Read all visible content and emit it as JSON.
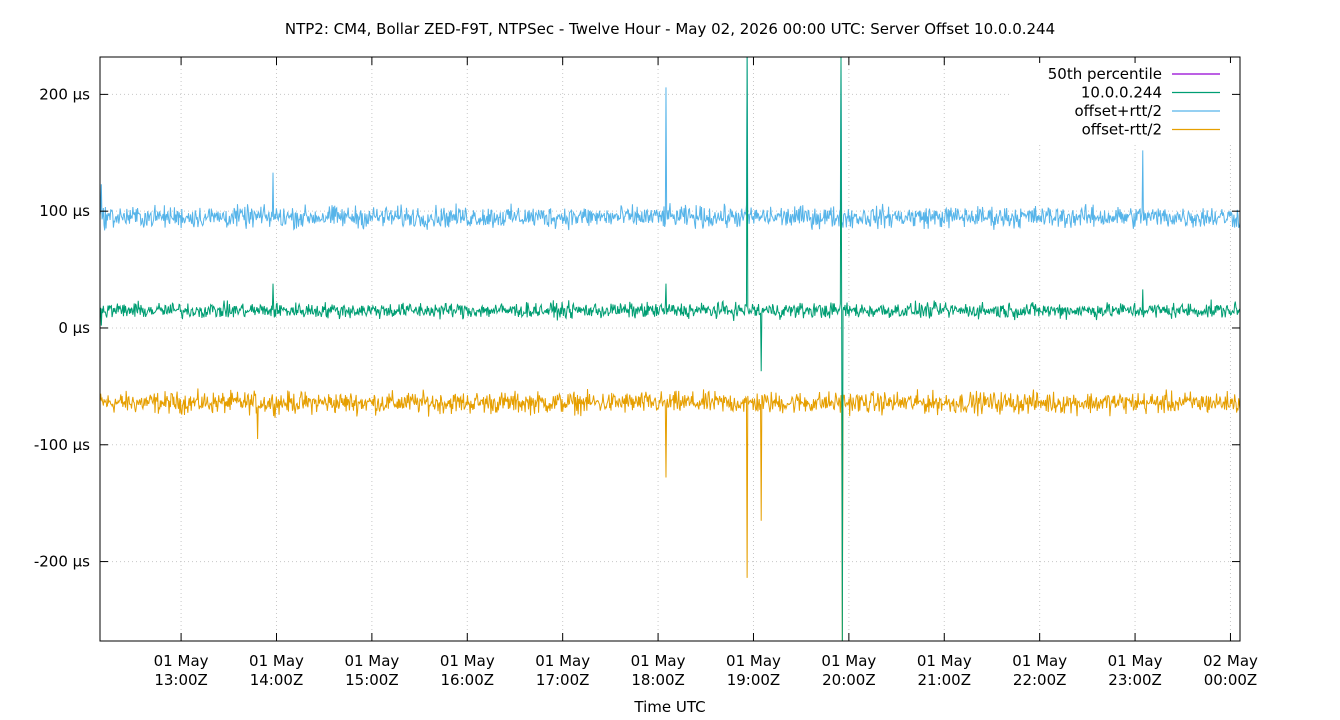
{
  "chart_data": {
    "type": "line",
    "title": "NTP2: CM4, Bollar ZED-F9T, NTPSec - Twelve Hour - May 02, 2026 00:00 UTC: Server Offset 10.0.0.244",
    "xlabel": "Time UTC",
    "ylabel": "",
    "xlim": [
      "2026-05-01T12:09Z",
      "2026-05-02T00:06Z"
    ],
    "ylim": [
      -268,
      232
    ],
    "grid": true,
    "legend_position": "top-right",
    "x_ticks": [
      {
        "time": "2026-05-01T13:00Z",
        "line1": "01 May",
        "line2": "13:00Z"
      },
      {
        "time": "2026-05-01T14:00Z",
        "line1": "01 May",
        "line2": "14:00Z"
      },
      {
        "time": "2026-05-01T15:00Z",
        "line1": "01 May",
        "line2": "15:00Z"
      },
      {
        "time": "2026-05-01T16:00Z",
        "line1": "01 May",
        "line2": "16:00Z"
      },
      {
        "time": "2026-05-01T17:00Z",
        "line1": "01 May",
        "line2": "17:00Z"
      },
      {
        "time": "2026-05-01T18:00Z",
        "line1": "01 May",
        "line2": "18:00Z"
      },
      {
        "time": "2026-05-01T19:00Z",
        "line1": "01 May",
        "line2": "19:00Z"
      },
      {
        "time": "2026-05-01T20:00Z",
        "line1": "01 May",
        "line2": "20:00Z"
      },
      {
        "time": "2026-05-01T21:00Z",
        "line1": "01 May",
        "line2": "21:00Z"
      },
      {
        "time": "2026-05-01T22:00Z",
        "line1": "01 May",
        "line2": "22:00Z"
      },
      {
        "time": "2026-05-01T23:00Z",
        "line1": "01 May",
        "line2": "23:00Z"
      },
      {
        "time": "2026-05-02T00:00Z",
        "line1": "02 May",
        "line2": "00:00Z"
      }
    ],
    "y_ticks": [
      {
        "value": 200,
        "label": "200 µs"
      },
      {
        "value": 100,
        "label": "100 µs"
      },
      {
        "value": 0,
        "label": "0 µs"
      },
      {
        "value": -100,
        "label": "-100 µs"
      },
      {
        "value": -200,
        "label": "-200 µs"
      }
    ],
    "series": [
      {
        "name": "50th percentile",
        "color": "#9400d3",
        "baseline": 15,
        "noise": 0,
        "spikes": []
      },
      {
        "name": "10.0.0.244",
        "color": "#009e73",
        "baseline": 15,
        "noise": 5,
        "spikes": [
          {
            "time": "2026-05-01T12:10Z",
            "value": 2
          },
          {
            "time": "2026-05-01T13:58Z",
            "value": 38
          },
          {
            "time": "2026-05-01T18:05Z",
            "value": 38
          },
          {
            "time": "2026-05-01T18:56Z",
            "value": 232
          },
          {
            "time": "2026-05-01T19:05Z",
            "value": -37
          },
          {
            "time": "2026-05-01T19:55Z",
            "value": 232
          },
          {
            "time": "2026-05-01T19:56Z",
            "value": -268
          },
          {
            "time": "2026-05-01T23:05Z",
            "value": 33
          }
        ]
      },
      {
        "name": "offset+rtt/2",
        "color": "#56b4e9",
        "baseline": 95,
        "noise": 7,
        "spikes": [
          {
            "time": "2026-05-01T12:10Z",
            "value": 123
          },
          {
            "time": "2026-05-01T13:58Z",
            "value": 133
          },
          {
            "time": "2026-05-01T18:05Z",
            "value": 206
          },
          {
            "time": "2026-05-01T18:56Z",
            "value": 232
          },
          {
            "time": "2026-05-01T19:55Z",
            "value": 232
          },
          {
            "time": "2026-05-01T23:05Z",
            "value": 152
          }
        ]
      },
      {
        "name": "offset-rtt/2",
        "color": "#e69f00",
        "baseline": -64,
        "noise": 7,
        "spikes": [
          {
            "time": "2026-05-01T13:48Z",
            "value": -95
          },
          {
            "time": "2026-05-01T18:05Z",
            "value": -128
          },
          {
            "time": "2026-05-01T18:56Z",
            "value": -214
          },
          {
            "time": "2026-05-01T19:05Z",
            "value": -165
          },
          {
            "time": "2026-05-01T19:56Z",
            "value": -268
          }
        ]
      }
    ]
  }
}
